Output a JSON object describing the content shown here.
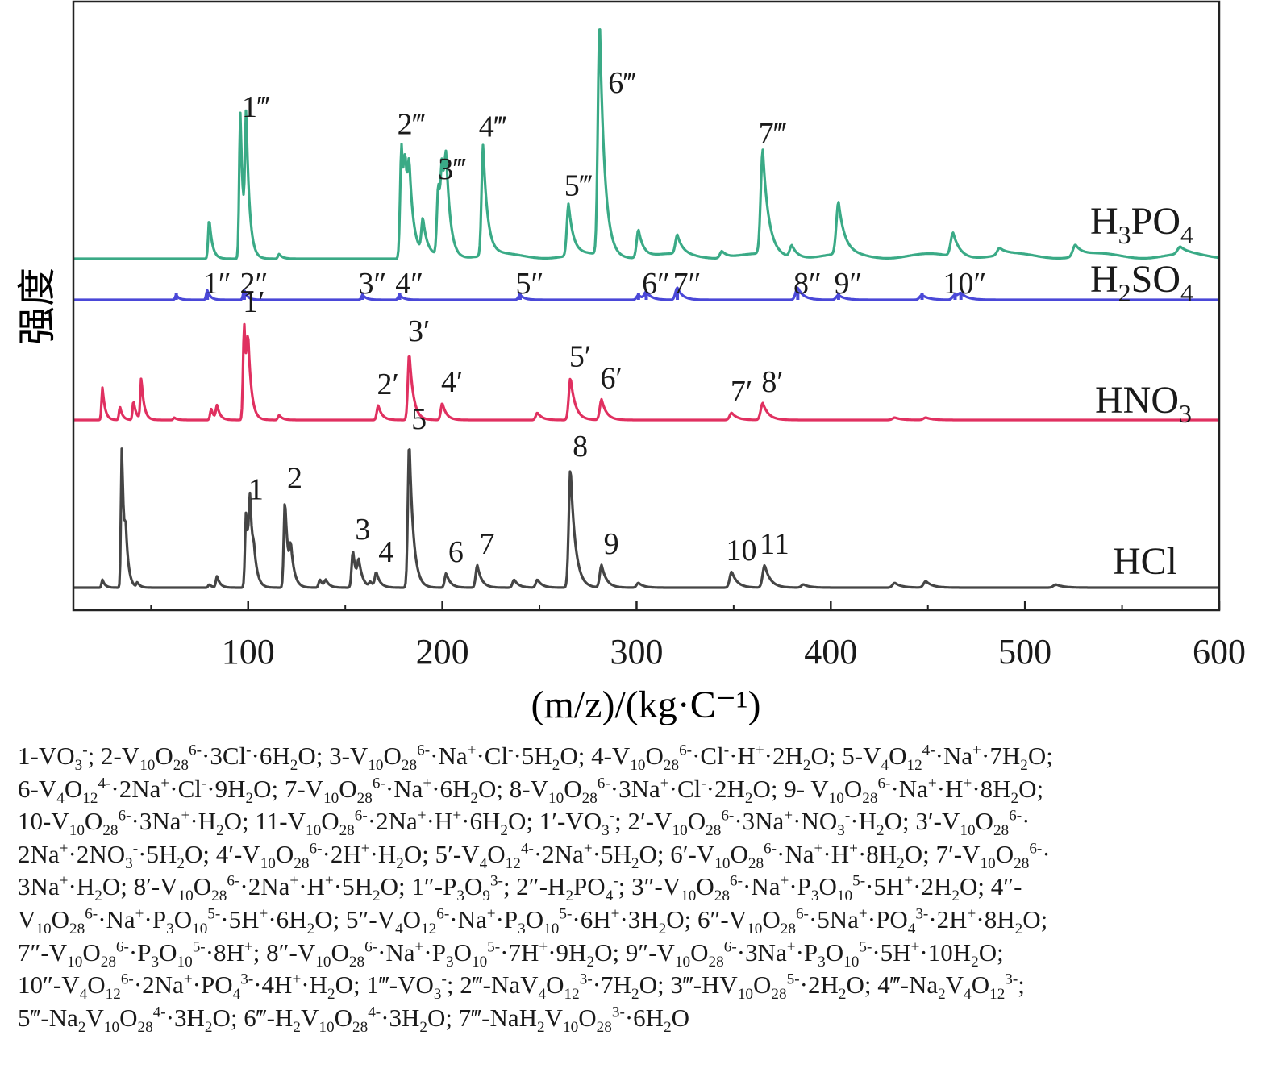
{
  "chart_data": {
    "type": "line",
    "xlabel": "(m/z)/(kg·C⁻¹)",
    "ylabel": "强度",
    "xlim": [
      10,
      600
    ],
    "x_ticks": [
      100,
      200,
      300,
      400,
      500,
      600
    ],
    "y_ticks": "none",
    "grid": false,
    "legend": "series labels at right end of each trace",
    "series": [
      {
        "name": "H₃PO₄",
        "color": "#3aaa86",
        "peaks": [
          [
            80,
            0.17
          ],
          [
            96,
            0.62
          ],
          [
            99,
            0.53
          ],
          [
            116,
            0.02
          ],
          [
            179,
            0.48
          ],
          [
            181,
            0.23
          ],
          [
            183,
            0.24
          ],
          [
            190,
            0.14
          ],
          [
            198,
            0.3
          ],
          [
            200,
            0.29
          ],
          [
            202,
            0.28
          ],
          [
            221,
            0.47
          ],
          [
            265,
            0.22
          ],
          [
            281,
            1.0
          ],
          [
            301,
            0.12
          ],
          [
            321,
            0.08
          ],
          [
            344,
            0.03
          ],
          [
            365,
            0.44
          ],
          [
            380,
            0.05
          ],
          [
            404,
            0.22
          ],
          [
            463,
            0.1
          ],
          [
            487,
            0.03
          ],
          [
            526,
            0.05
          ],
          [
            580,
            0.03
          ]
        ],
        "peak_labels": [
          {
            "text": "1‴",
            "x": 99
          },
          {
            "text": "2‴",
            "x": 179
          },
          {
            "text": "3‴",
            "x": 200
          },
          {
            "text": "4‴",
            "x": 221
          },
          {
            "text": "5‴",
            "x": 265
          },
          {
            "text": "6‴",
            "x": 281
          },
          {
            "text": "7‴",
            "x": 365
          }
        ]
      },
      {
        "name": "H₂SO₄",
        "color": "#4a48d8",
        "peaks": [
          [
            63,
            0.02
          ],
          [
            79,
            0.04
          ],
          [
            98,
            0.04
          ],
          [
            159,
            0.02
          ],
          [
            178,
            0.02
          ],
          [
            240,
            0.02
          ],
          [
            301,
            0.02
          ],
          [
            305,
            0.03
          ],
          [
            321,
            0.05
          ],
          [
            383,
            0.05
          ],
          [
            404,
            0.02
          ],
          [
            447,
            0.02
          ],
          [
            464,
            0.02
          ],
          [
            467,
            0.02
          ]
        ],
        "peak_labels": [
          {
            "text": "1″",
            "x": 79
          },
          {
            "text": "2″",
            "x": 98
          },
          {
            "text": "3″",
            "x": 159
          },
          {
            "text": "4″",
            "x": 178
          },
          {
            "text": "5″",
            "x": 240
          },
          {
            "text": "6″",
            "x": 305
          },
          {
            "text": "7″",
            "x": 321
          },
          {
            "text": "8″",
            "x": 383
          },
          {
            "text": "9″",
            "x": 404
          },
          {
            "text": "10″",
            "x": 464
          }
        ]
      },
      {
        "name": "HNO₃",
        "color": "#e03060",
        "peaks": [
          [
            25,
            0.27
          ],
          [
            34,
            0.11
          ],
          [
            41,
            0.16
          ],
          [
            45,
            0.34
          ],
          [
            62,
            0.02
          ],
          [
            81,
            0.09
          ],
          [
            84,
            0.11
          ],
          [
            98,
            0.8
          ],
          [
            100,
            0.46
          ],
          [
            116,
            0.04
          ],
          [
            167,
            0.12
          ],
          [
            183,
            0.56
          ],
          [
            200,
            0.14
          ],
          [
            249,
            0.06
          ],
          [
            266,
            0.35
          ],
          [
            282,
            0.17
          ],
          [
            349,
            0.06
          ],
          [
            365,
            0.14
          ],
          [
            433,
            0.02
          ],
          [
            449,
            0.02
          ]
        ],
        "peak_labels": [
          {
            "text": "1′",
            "x": 98
          },
          {
            "text": "2′",
            "x": 167
          },
          {
            "text": "3′",
            "x": 183
          },
          {
            "text": "4′",
            "x": 200
          },
          {
            "text": "5′",
            "x": 266
          },
          {
            "text": "6′",
            "x": 282
          },
          {
            "text": "7′",
            "x": 349
          },
          {
            "text": "8′",
            "x": 365
          }
        ]
      },
      {
        "name": "HCl",
        "color": "#454545",
        "peaks": [
          [
            25,
            0.05
          ],
          [
            35,
            0.88
          ],
          [
            37,
            0.2
          ],
          [
            43,
            0.03
          ],
          [
            80,
            0.02
          ],
          [
            84,
            0.07
          ],
          [
            99,
            0.48
          ],
          [
            101,
            0.44
          ],
          [
            103,
            0.1
          ],
          [
            119,
            0.55
          ],
          [
            122,
            0.18
          ],
          [
            137,
            0.05
          ],
          [
            140,
            0.04
          ],
          [
            154,
            0.23
          ],
          [
            157,
            0.13
          ],
          [
            163,
            0.03
          ],
          [
            166,
            0.09
          ],
          [
            183,
            0.92
          ],
          [
            202,
            0.09
          ],
          [
            218,
            0.14
          ],
          [
            237,
            0.05
          ],
          [
            249,
            0.05
          ],
          [
            266,
            0.75
          ],
          [
            282,
            0.14
          ],
          [
            301,
            0.03
          ],
          [
            349,
            0.1
          ],
          [
            366,
            0.14
          ],
          [
            386,
            0.02
          ],
          [
            433,
            0.03
          ],
          [
            449,
            0.04
          ],
          [
            516,
            0.02
          ]
        ],
        "peak_labels": [
          {
            "text": "1",
            "x": 99
          },
          {
            "text": "2",
            "x": 119
          },
          {
            "text": "3",
            "x": 154
          },
          {
            "text": "4",
            "x": 166
          },
          {
            "text": "5",
            "x": 183
          },
          {
            "text": "6",
            "x": 202
          },
          {
            "text": "7",
            "x": 218
          },
          {
            "text": "8",
            "x": 266
          },
          {
            "text": "9",
            "x": 282
          },
          {
            "text": "10",
            "x": 349
          },
          {
            "text": "11",
            "x": 366
          }
        ]
      }
    ]
  },
  "legend_lines": [
    "1-VO<sub>3</sub><sup>-</sup>; 2-V<sub>10</sub>O<sub>28</sub><sup>6-</sup>·3Cl<sup>-</sup>·6H<sub>2</sub>O; 3-V<sub>10</sub>O<sub>28</sub><sup>6-</sup>·Na<sup>+</sup>·Cl<sup>-</sup>·5H<sub>2</sub>O; 4-V<sub>10</sub>O<sub>28</sub><sup>6-</sup>·Cl<sup>-</sup>·H<sup>+</sup>·2H<sub>2</sub>O; 5-V<sub>4</sub>O<sub>12</sub><sup>4-</sup>·Na<sup>+</sup>·7H<sub>2</sub>O;",
    "6-V<sub>4</sub>O<sub>12</sub><sup>4-</sup>·2Na<sup>+</sup>·Cl<sup>-</sup>·9H<sub>2</sub>O; 7-V<sub>10</sub>O<sub>28</sub><sup>6-</sup>·Na<sup>+</sup>·6H<sub>2</sub>O; 8-V<sub>10</sub>O<sub>28</sub><sup>6-</sup>·3Na<sup>+</sup>·Cl<sup>-</sup>·2H<sub>2</sub>O; 9- V<sub>10</sub>O<sub>28</sub><sup>6-</sup>·Na<sup>+</sup>·H<sup>+</sup>·8H<sub>2</sub>O;",
    "10-V<sub>10</sub>O<sub>28</sub><sup>6-</sup>·3Na<sup>+</sup>·H<sub>2</sub>O; 11-V<sub>10</sub>O<sub>28</sub><sup>6-</sup>·2Na<sup>+</sup>·H<sup>+</sup>·6H<sub>2</sub>O; 1′-VO<sub>3</sub><sup>-</sup>; 2′-V<sub>10</sub>O<sub>28</sub><sup>6-</sup>·3Na<sup>+</sup>·NO<sub>3</sub><sup>-</sup>·H<sub>2</sub>O; 3′-V<sub>10</sub>O<sub>28</sub><sup>6-</sup>·",
    "2Na<sup>+</sup>·2NO<sub>3</sub><sup>-</sup>·5H<sub>2</sub>O; 4′-V<sub>10</sub>O<sub>28</sub><sup>6-</sup>·2H<sup>+</sup>·H<sub>2</sub>O; 5′-V<sub>4</sub>O<sub>12</sub><sup>4-</sup>·2Na<sup>+</sup>·5H<sub>2</sub>O; 6′-V<sub>10</sub>O<sub>28</sub><sup>6-</sup>·Na<sup>+</sup>·H<sup>+</sup>·8H<sub>2</sub>O; 7′-V<sub>10</sub>O<sub>28</sub><sup>6-</sup>·",
    "3Na<sup>+</sup>·H<sub>2</sub>O; 8′-V<sub>10</sub>O<sub>28</sub><sup>6-</sup>·2Na<sup>+</sup>·H<sup>+</sup>·5H<sub>2</sub>O; 1″-P<sub>3</sub>O<sub>9</sub><sup>3-</sup>; 2″-H<sub>2</sub>PO<sub>4</sub><sup>-</sup>; 3″-V<sub>10</sub>O<sub>28</sub><sup>6-</sup>·Na<sup>+</sup>·P<sub>3</sub>O<sub>10</sub><sup>5-</sup>·5H<sup>+</sup>·2H<sub>2</sub>O; 4″-",
    "V<sub>10</sub>O<sub>28</sub><sup>6-</sup>·Na<sup>+</sup>·P<sub>3</sub>O<sub>10</sub><sup>5-</sup>·5H<sup>+</sup>·6H<sub>2</sub>O; 5″-V<sub>4</sub>O<sub>12</sub><sup>6-</sup>·Na<sup>+</sup>·P<sub>3</sub>O<sub>10</sub><sup>5-</sup>·6H<sup>+</sup>·3H<sub>2</sub>O; 6″-V<sub>10</sub>O<sub>28</sub><sup>6-</sup>·5Na<sup>+</sup>·PO<sub>4</sub><sup>3-</sup>·2H<sup>+</sup>·8H<sub>2</sub>O;",
    "7″-V<sub>10</sub>O<sub>28</sub><sup>6-</sup>·P<sub>3</sub>O<sub>10</sub><sup>5-</sup>·8H<sup>+</sup>; 8″-V<sub>10</sub>O<sub>28</sub><sup>6-</sup>·Na<sup>+</sup>·P<sub>3</sub>O<sub>10</sub><sup>5-</sup>·7H<sup>+</sup>·9H<sub>2</sub>O; 9″-V<sub>10</sub>O<sub>28</sub><sup>6-</sup>·3Na<sup>+</sup>·P<sub>3</sub>O<sub>10</sub><sup>5-</sup>·5H<sup>+</sup>·10H<sub>2</sub>O;",
    "10″-V<sub>4</sub>O<sub>12</sub><sup>6-</sup>·2Na<sup>+</sup>·PO<sub>4</sub><sup>3-</sup>·4H<sup>+</sup>·H<sub>2</sub>O; 1‴-VO<sub>3</sub><sup>-</sup>; 2‴-NaV<sub>4</sub>O<sub>12</sub><sup>3-</sup>·7H<sub>2</sub>O; 3‴-HV<sub>10</sub>O<sub>28</sub><sup>5-</sup>·2H<sub>2</sub>O; 4‴-Na<sub>2</sub>V<sub>4</sub>O<sub>12</sub><sup>3-</sup>;",
    "5‴-Na<sub>2</sub>V<sub>10</sub>O<sub>28</sub><sup>4-</sup>·3H<sub>2</sub>O; 6‴-H<sub>2</sub>V<sub>10</sub>O<sub>28</sub><sup>4-</sup>·3H<sub>2</sub>O; 7‴-NaH<sub>2</sub>V<sub>10</sub>O<sub>28</sub><sup>3-</sup>·6H<sub>2</sub>O"
  ]
}
